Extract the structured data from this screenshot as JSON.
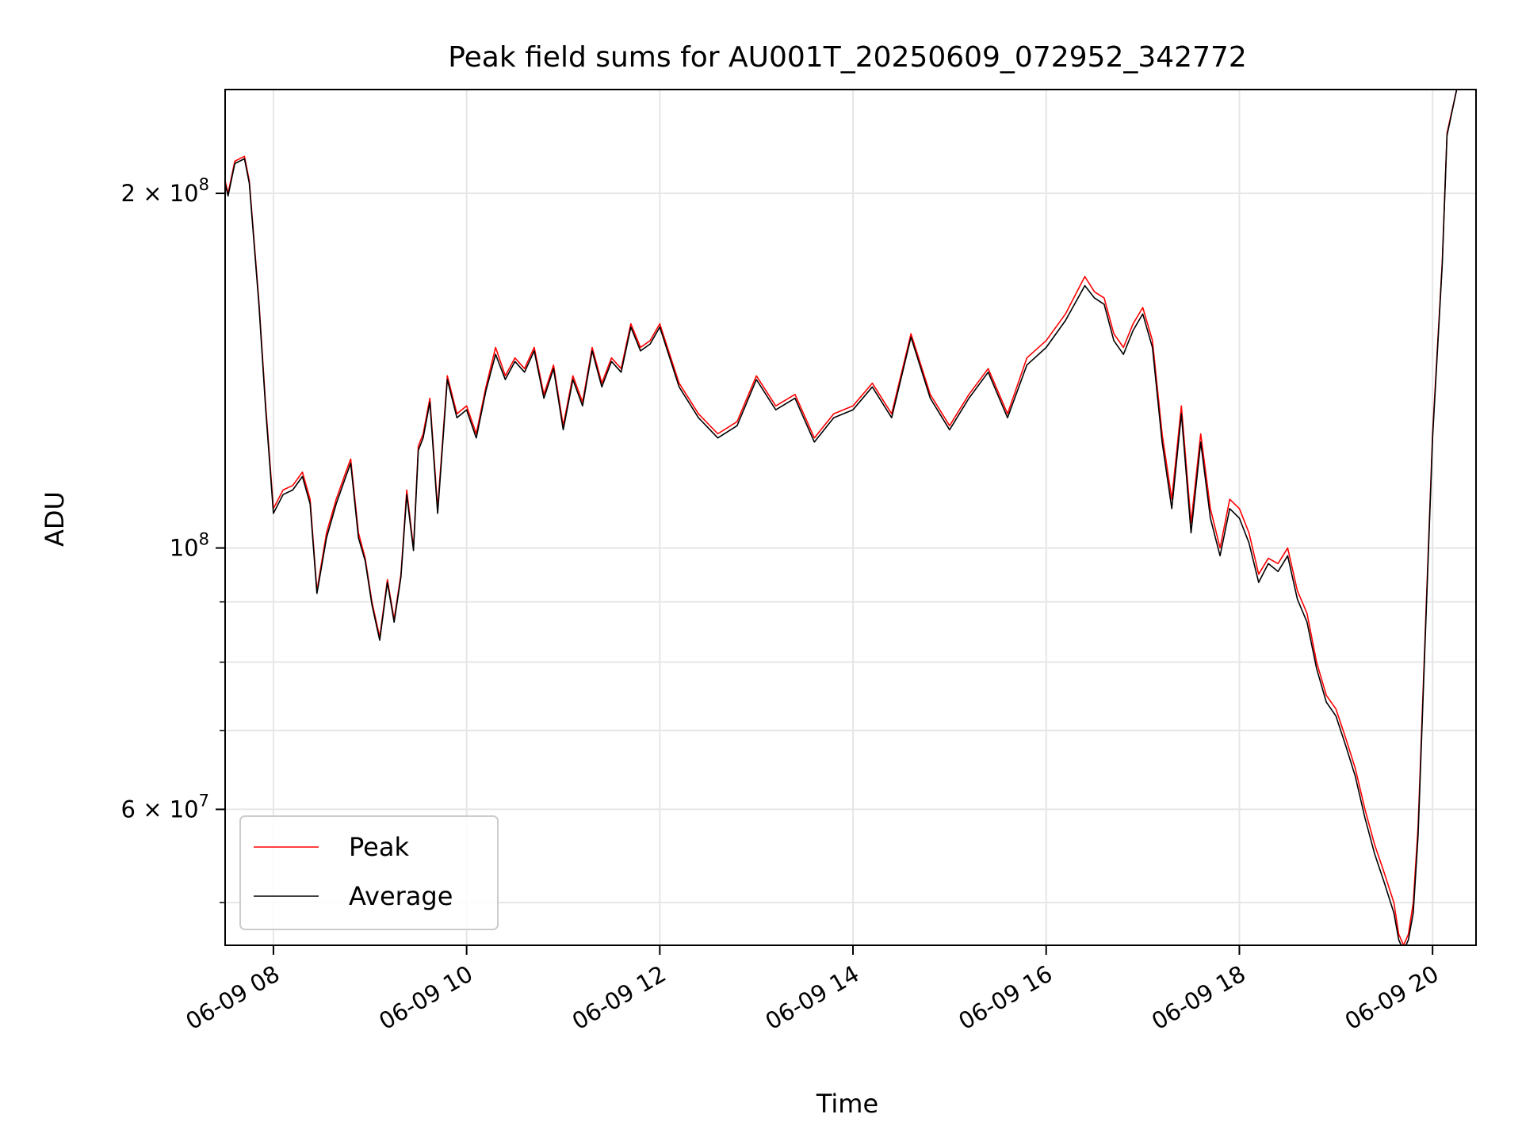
{
  "chart_data": {
    "type": "line",
    "title": "Peak field sums for AU001T_20250609_072952_342772",
    "xlabel": "Time",
    "ylabel": "ADU",
    "y_scale": "log",
    "grid": true,
    "legend_position": "lower-left",
    "xlim": [
      "06-09 07:30",
      "06-09 20:27"
    ],
    "ylim": [
      46000000,
      245000000
    ],
    "x_ticks": [
      "06-09 08",
      "06-09 10",
      "06-09 12",
      "06-09 14",
      "06-09 16",
      "06-09 18",
      "06-09 20"
    ],
    "x_tick_hours": [
      8,
      10,
      12,
      14,
      16,
      18,
      20
    ],
    "y_ticks": [
      {
        "mantissa": "2",
        "exponent": "8",
        "value": 200000000
      },
      {
        "mantissa": "",
        "exponent": "8",
        "value": 100000000
      },
      {
        "mantissa": "6",
        "exponent": "7",
        "value": 60000000
      }
    ],
    "y_minor_ticks": [
      50000000,
      70000000,
      80000000,
      90000000
    ],
    "series": [
      {
        "name": "Peak",
        "color": "#ff0000",
        "x_hours": [
          7.5,
          7.53,
          7.6,
          7.7,
          7.75,
          7.85,
          7.92,
          8.0,
          8.1,
          8.2,
          8.3,
          8.38,
          8.45,
          8.55,
          8.65,
          8.75,
          8.8,
          8.88,
          8.95,
          9.02,
          9.1,
          9.18,
          9.25,
          9.32,
          9.38,
          9.45,
          9.5,
          9.55,
          9.62,
          9.7,
          9.8,
          9.9,
          10.0,
          10.1,
          10.2,
          10.3,
          10.4,
          10.5,
          10.6,
          10.7,
          10.8,
          10.9,
          11.0,
          11.1,
          11.2,
          11.3,
          11.4,
          11.5,
          11.6,
          11.7,
          11.8,
          11.9,
          12.0,
          12.2,
          12.4,
          12.6,
          12.8,
          13.0,
          13.2,
          13.4,
          13.6,
          13.8,
          14.0,
          14.2,
          14.4,
          14.6,
          14.8,
          15.0,
          15.2,
          15.4,
          15.6,
          15.8,
          16.0,
          16.2,
          16.4,
          16.5,
          16.6,
          16.7,
          16.8,
          16.9,
          17.0,
          17.1,
          17.2,
          17.3,
          17.4,
          17.5,
          17.6,
          17.7,
          17.8,
          17.9,
          18.0,
          18.1,
          18.2,
          18.3,
          18.4,
          18.5,
          18.6,
          18.7,
          18.8,
          18.9,
          19.0,
          19.1,
          19.2,
          19.3,
          19.4,
          19.5,
          19.6,
          19.65,
          19.7,
          19.75,
          19.8,
          19.85,
          19.9,
          20.0,
          20.1,
          20.15,
          20.25
        ],
        "values": [
          205000000,
          200000000,
          213000000,
          215000000,
          205000000,
          162000000,
          132000000,
          108000000,
          112000000,
          113000000,
          116000000,
          110000000,
          92000000,
          103000000,
          110000000,
          116000000,
          119000000,
          103000000,
          98000000,
          90000000,
          84000000,
          94000000,
          87000000,
          95000000,
          112000000,
          100000000,
          122000000,
          125000000,
          134000000,
          108000000,
          140000000,
          130000000,
          132000000,
          125000000,
          137000000,
          148000000,
          140000000,
          145000000,
          142000000,
          148000000,
          135000000,
          143000000,
          127000000,
          140000000,
          133000000,
          148000000,
          138000000,
          145000000,
          142000000,
          155000000,
          148000000,
          150000000,
          155000000,
          138000000,
          130000000,
          125000000,
          128000000,
          140000000,
          132000000,
          135000000,
          124000000,
          130000000,
          132000000,
          138000000,
          130000000,
          152000000,
          135000000,
          127000000,
          135000000,
          142000000,
          130000000,
          145000000,
          150000000,
          158000000,
          170000000,
          165000000,
          163000000,
          152000000,
          148000000,
          155000000,
          160000000,
          150000000,
          125000000,
          110000000,
          132000000,
          105000000,
          125000000,
          108000000,
          100000000,
          110000000,
          108000000,
          103000000,
          95000000,
          98000000,
          97000000,
          100000000,
          92000000,
          88000000,
          80000000,
          75000000,
          73000000,
          69000000,
          65000000,
          60000000,
          56000000,
          53000000,
          50000000,
          47000000,
          46000000,
          47000000,
          50000000,
          58000000,
          75000000,
          125000000,
          175000000,
          225000000,
          245000000
        ]
      },
      {
        "name": "Average",
        "color": "#000000",
        "x_hours": [
          7.5,
          7.53,
          7.6,
          7.7,
          7.75,
          7.85,
          7.92,
          8.0,
          8.1,
          8.2,
          8.3,
          8.38,
          8.45,
          8.55,
          8.65,
          8.75,
          8.8,
          8.88,
          8.95,
          9.02,
          9.1,
          9.18,
          9.25,
          9.32,
          9.38,
          9.45,
          9.5,
          9.55,
          9.62,
          9.7,
          9.8,
          9.9,
          10.0,
          10.1,
          10.2,
          10.3,
          10.4,
          10.5,
          10.6,
          10.7,
          10.8,
          10.9,
          11.0,
          11.1,
          11.2,
          11.3,
          11.4,
          11.5,
          11.6,
          11.7,
          11.8,
          11.9,
          12.0,
          12.2,
          12.4,
          12.6,
          12.8,
          13.0,
          13.2,
          13.4,
          13.6,
          13.8,
          14.0,
          14.2,
          14.4,
          14.6,
          14.8,
          15.0,
          15.2,
          15.4,
          15.6,
          15.8,
          16.0,
          16.2,
          16.4,
          16.5,
          16.6,
          16.7,
          16.8,
          16.9,
          17.0,
          17.1,
          17.2,
          17.3,
          17.4,
          17.5,
          17.6,
          17.7,
          17.8,
          17.9,
          18.0,
          18.1,
          18.2,
          18.3,
          18.4,
          18.5,
          18.6,
          18.7,
          18.8,
          18.9,
          19.0,
          19.1,
          19.2,
          19.3,
          19.4,
          19.5,
          19.6,
          19.65,
          19.7,
          19.75,
          19.8,
          19.85,
          19.9,
          20.0,
          20.1,
          20.15,
          20.25
        ],
        "values": [
          204000000,
          199000000,
          212000000,
          214000000,
          204000000,
          161000000,
          131000000,
          107000000,
          111000000,
          112000000,
          115000000,
          109000000,
          91500000,
          102000000,
          109000000,
          115000000,
          118000000,
          102000000,
          97500000,
          89500000,
          83500000,
          93500000,
          86500000,
          94500000,
          111000000,
          99500000,
          121000000,
          124000000,
          133000000,
          107000000,
          139000000,
          129000000,
          131000000,
          124000000,
          136000000,
          146000000,
          139000000,
          144000000,
          141000000,
          147000000,
          134000000,
          142000000,
          126000000,
          139000000,
          132000000,
          147000000,
          137000000,
          144000000,
          141000000,
          154000000,
          147000000,
          149000000,
          154000000,
          137000000,
          129000000,
          124000000,
          127000000,
          139000000,
          131000000,
          134000000,
          123000000,
          129000000,
          131000000,
          137000000,
          129000000,
          151000000,
          134000000,
          126000000,
          134000000,
          141000000,
          129000000,
          143000000,
          148000000,
          156000000,
          167000000,
          163000000,
          161000000,
          150000000,
          146000000,
          153000000,
          158000000,
          148000000,
          123000000,
          108000000,
          130000000,
          103000000,
          123000000,
          106000000,
          98500000,
          108000000,
          106000000,
          101000000,
          93500000,
          97000000,
          95500000,
          98500000,
          90500000,
          86500000,
          79000000,
          74000000,
          72000000,
          68000000,
          64000000,
          59000000,
          55000000,
          52000000,
          49000000,
          46500000,
          45500000,
          46500000,
          49000000,
          57000000,
          74000000,
          124000000,
          174000000,
          224000000,
          245000000
        ]
      }
    ]
  }
}
